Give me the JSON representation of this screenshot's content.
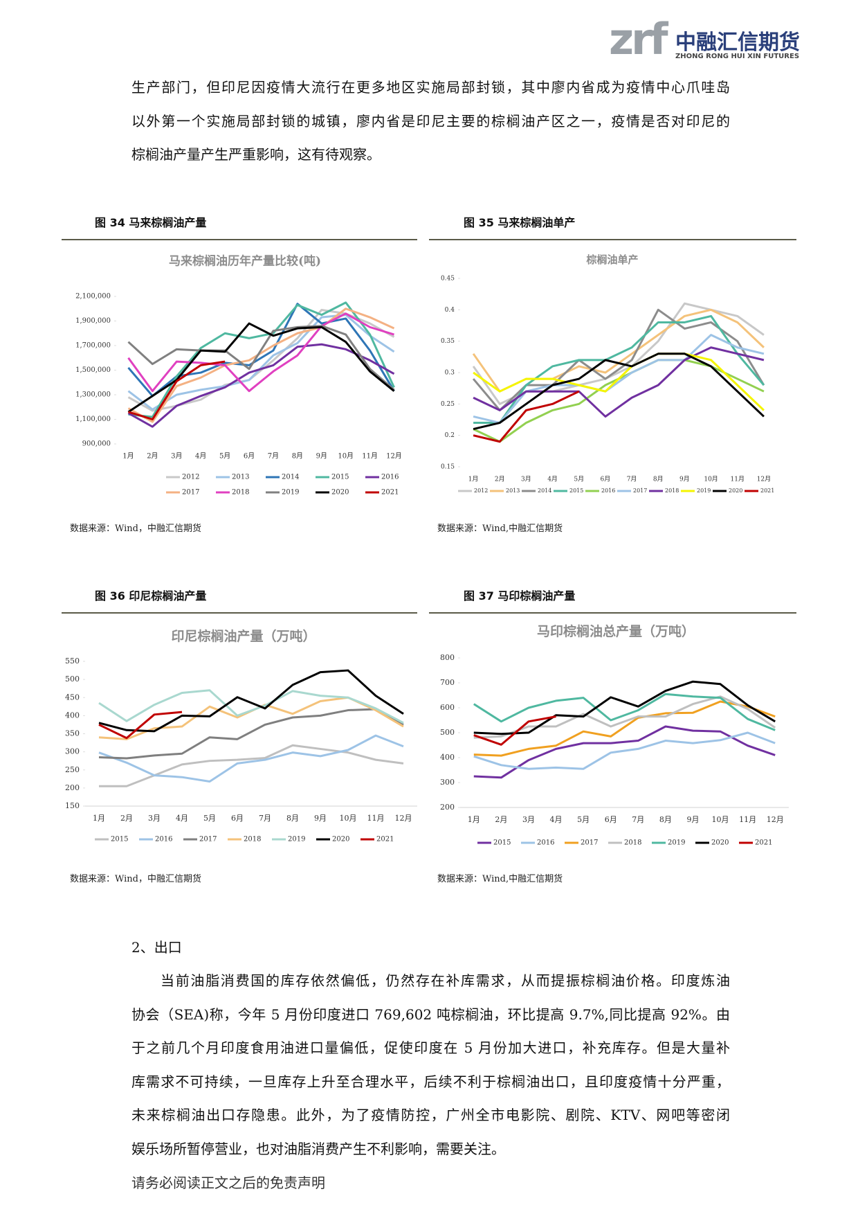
{
  "header": {
    "logo_mark": "zrf",
    "logo_cn": "中融汇信期货",
    "logo_en": "ZHONG RONG HUI XIN FUTURES"
  },
  "paragraph1": [
    "生产部门，但印尼因疫情大流行在更多地区实施局部封锁，其中廖内省成为疫情中心爪哇岛",
    "以外第一个实施局部封锁的城镇，廖内省是印尼主要的棕榈油产区之一，疫情是否对印尼的",
    "棕榈油产量产生严重影响，这有待观察。"
  ],
  "figures": [
    {
      "caption": "图 34  马来棕榈油产量",
      "source": "数据来源：Wind，中融汇信期货"
    },
    {
      "caption": "图 35  马来棕榈油单产",
      "source": "数据来源：Wind,中融汇信期货"
    },
    {
      "caption": "图 36  印尼棕榈油产量",
      "source": "数据来源：Wind，中融汇信期货"
    },
    {
      "caption": "图 37  马印棕榈油产量",
      "source": "数据来源：Wind,中融汇信期货"
    }
  ],
  "chart_data": [
    {
      "type": "line",
      "title": "马来棕榈油历年产量比较(吨)",
      "categories": [
        "1月",
        "2月",
        "3月",
        "4月",
        "5月",
        "6月",
        "7月",
        "8月",
        "9月",
        "10月",
        "11月",
        "12月"
      ],
      "ylim": [
        900000,
        2100000
      ],
      "yticks": [
        {
          "value": 900000,
          "label": "900,000"
        },
        {
          "value": 1100000,
          "label": "1,100,000"
        },
        {
          "value": 1300000,
          "label": "1,300,000"
        },
        {
          "value": 1500000,
          "label": "1,500,000"
        },
        {
          "value": 1700000,
          "label": "1,700,000"
        },
        {
          "value": 1900000,
          "label": "1,900,000"
        },
        {
          "value": 2100000,
          "label": "2,100,000"
        }
      ],
      "series": [
        {
          "name": "2012",
          "color": "#c8c8c8",
          "values": [
            1280000,
            1170000,
            1210000,
            1260000,
            1380000,
            1420000,
            1580000,
            1760000,
            1990000,
            1960000,
            1880000,
            1770000
          ]
        },
        {
          "name": "2013",
          "color": "#9dc3e6",
          "values": [
            1330000,
            1180000,
            1300000,
            1340000,
            1370000,
            1420000,
            1620000,
            1720000,
            1930000,
            1950000,
            1780000,
            1650000
          ]
        },
        {
          "name": "2014",
          "color": "#2e75b6",
          "values": [
            1520000,
            1290000,
            1450000,
            1480000,
            1560000,
            1540000,
            1660000,
            2040000,
            1880000,
            1920000,
            1660000,
            1330000
          ]
        },
        {
          "name": "2015",
          "color": "#4fb8a0",
          "values": [
            1140000,
            1120000,
            1450000,
            1680000,
            1800000,
            1760000,
            1800000,
            2030000,
            1950000,
            2050000,
            1790000,
            1360000
          ]
        },
        {
          "name": "2016",
          "color": "#7030a0",
          "values": [
            1150000,
            1040000,
            1210000,
            1290000,
            1360000,
            1480000,
            1540000,
            1690000,
            1710000,
            1670000,
            1580000,
            1470000
          ]
        },
        {
          "name": "2017",
          "color": "#f4b183",
          "values": [
            1190000,
            1080000,
            1370000,
            1440000,
            1540000,
            1580000,
            1700000,
            1800000,
            1850000,
            2000000,
            1930000,
            1840000
          ]
        },
        {
          "name": "2018",
          "color": "#e040c0",
          "values": [
            1600000,
            1330000,
            1570000,
            1560000,
            1540000,
            1330000,
            1490000,
            1620000,
            1860000,
            1960000,
            1850000,
            1790000
          ]
        },
        {
          "name": "2019",
          "color": "#808080",
          "values": [
            1730000,
            1550000,
            1670000,
            1660000,
            1660000,
            1510000,
            1820000,
            1850000,
            1860000,
            1790000,
            1510000,
            1340000
          ]
        },
        {
          "name": "2020",
          "color": "#000000",
          "values": [
            1160000,
            1290000,
            1420000,
            1660000,
            1650000,
            1880000,
            1780000,
            1840000,
            1850000,
            1730000,
            1490000,
            1330000
          ]
        },
        {
          "name": "2021",
          "color": "#c00000",
          "values": [
            1160000,
            1100000,
            1410000,
            1540000,
            1570000,
            null,
            null,
            null,
            null,
            null,
            null,
            null
          ]
        }
      ]
    },
    {
      "type": "line",
      "title": "棕榈油单产",
      "categories": [
        "1月",
        "2月",
        "3月",
        "4月",
        "5月",
        "6月",
        "7月",
        "8月",
        "9月",
        "10月",
        "11月",
        "12月"
      ],
      "ylim": [
        0.15,
        0.45
      ],
      "yticks": [
        0.15,
        0.2,
        0.25,
        0.3,
        0.35,
        0.4,
        0.45
      ],
      "series": [
        {
          "name": "2012",
          "color": "#c8c8c8",
          "values": [
            0.31,
            0.25,
            0.27,
            0.27,
            0.28,
            0.29,
            0.31,
            0.35,
            0.41,
            0.4,
            0.39,
            0.36
          ]
        },
        {
          "name": "2013",
          "color": "#f4c27a",
          "values": [
            0.33,
            0.27,
            0.29,
            0.29,
            0.31,
            0.3,
            0.33,
            0.36,
            0.39,
            0.4,
            0.38,
            0.34
          ]
        },
        {
          "name": "2014",
          "color": "#8c8c8c",
          "values": [
            0.29,
            0.24,
            0.28,
            0.28,
            0.32,
            0.29,
            0.32,
            0.4,
            0.37,
            0.38,
            0.35,
            0.28
          ]
        },
        {
          "name": "2015",
          "color": "#4fb8a0",
          "values": [
            0.22,
            0.22,
            0.28,
            0.31,
            0.32,
            0.32,
            0.34,
            0.38,
            0.38,
            0.39,
            0.33,
            0.28
          ]
        },
        {
          "name": "2016",
          "color": "#92d050",
          "values": [
            0.21,
            0.19,
            0.22,
            0.24,
            0.25,
            0.28,
            0.3,
            0.32,
            0.32,
            0.31,
            0.29,
            0.27
          ]
        },
        {
          "name": "2017",
          "color": "#9dc3e6",
          "values": [
            0.23,
            0.22,
            0.27,
            0.28,
            0.28,
            0.27,
            0.3,
            0.32,
            0.32,
            0.36,
            0.34,
            0.33
          ]
        },
        {
          "name": "2018",
          "color": "#7030a0",
          "values": [
            0.26,
            0.24,
            0.27,
            0.27,
            0.27,
            0.23,
            0.26,
            0.28,
            0.32,
            0.34,
            0.33,
            0.32
          ]
        },
        {
          "name": "2019",
          "color": "#f5f500",
          "values": [
            0.3,
            0.27,
            0.29,
            0.29,
            0.28,
            0.27,
            0.31,
            0.33,
            0.33,
            0.32,
            0.28,
            0.24
          ]
        },
        {
          "name": "2020",
          "color": "#000000",
          "values": [
            0.21,
            0.22,
            0.25,
            0.28,
            0.29,
            0.32,
            0.31,
            0.33,
            0.33,
            0.31,
            0.27,
            0.23
          ]
        },
        {
          "name": "2021",
          "color": "#c00000",
          "values": [
            0.2,
            0.19,
            0.24,
            0.25,
            0.27,
            null,
            null,
            null,
            null,
            null,
            null,
            null
          ]
        }
      ]
    },
    {
      "type": "line",
      "title": "印尼棕榈油产量（万吨）",
      "categories": [
        "1月",
        "2月",
        "3月",
        "4月",
        "5月",
        "6月",
        "7月",
        "8月",
        "9月",
        "10月",
        "11月",
        "12月"
      ],
      "ylim": [
        150,
        550
      ],
      "yticks": [
        150,
        200,
        250,
        300,
        350,
        400,
        450,
        500,
        550
      ],
      "series": [
        {
          "name": "2015",
          "color": "#bfbfbf",
          "values": [
            205,
            205,
            235,
            265,
            275,
            278,
            283,
            318,
            308,
            298,
            278,
            268
          ]
        },
        {
          "name": "2016",
          "color": "#9dc3e6",
          "values": [
            298,
            270,
            235,
            230,
            218,
            268,
            278,
            298,
            288,
            305,
            345,
            315
          ]
        },
        {
          "name": "2017",
          "color": "#7f7f7f",
          "values": [
            285,
            282,
            290,
            295,
            340,
            335,
            375,
            395,
            400,
            415,
            418,
            375
          ]
        },
        {
          "name": "2018",
          "color": "#f4c27a",
          "values": [
            340,
            335,
            365,
            370,
            425,
            395,
            430,
            405,
            440,
            450,
            415,
            370
          ]
        },
        {
          "name": "2019",
          "color": "#a9d8cf",
          "values": [
            435,
            385,
            430,
            463,
            470,
            400,
            428,
            468,
            455,
            450,
            420,
            380
          ]
        },
        {
          "name": "2020",
          "color": "#000000",
          "values": [
            380,
            360,
            357,
            400,
            398,
            451,
            420,
            485,
            520,
            525,
            455,
            405
          ]
        },
        {
          "name": "2021",
          "color": "#c00000",
          "values": [
            375,
            338,
            403,
            410,
            null,
            null,
            null,
            null,
            null,
            null,
            null,
            null
          ]
        }
      ]
    },
    {
      "type": "line",
      "title": "马印棕榈油总产量（万吨）",
      "categories": [
        "1月",
        "2月",
        "3月",
        "4月",
        "5月",
        "6月",
        "7月",
        "8月",
        "9月",
        "10月",
        "11月",
        "12月"
      ],
      "ylim": [
        200,
        800
      ],
      "yticks": [
        200,
        300,
        400,
        500,
        600,
        700,
        800
      ],
      "series": [
        {
          "name": "2015",
          "color": "#7030a0",
          "values": [
            325,
            320,
            390,
            435,
            458,
            458,
            468,
            525,
            508,
            505,
            448,
            410
          ]
        },
        {
          "name": "2016",
          "color": "#9dc3e6",
          "values": [
            405,
            370,
            355,
            360,
            355,
            420,
            435,
            468,
            458,
            470,
            500,
            458
          ]
        },
        {
          "name": "2017",
          "color": "#f0a020",
          "values": [
            412,
            408,
            435,
            448,
            505,
            485,
            560,
            578,
            580,
            625,
            605,
            565
          ]
        },
        {
          "name": "2018",
          "color": "#bfbfbf",
          "values": [
            480,
            485,
            525,
            525,
            575,
            525,
            565,
            565,
            615,
            645,
            595,
            520
          ]
        },
        {
          "name": "2019",
          "color": "#4fb8a0",
          "values": [
            615,
            545,
            600,
            628,
            640,
            550,
            590,
            655,
            645,
            640,
            555,
            510
          ]
        },
        {
          "name": "2020",
          "color": "#000000",
          "values": [
            500,
            495,
            500,
            570,
            565,
            642,
            605,
            668,
            705,
            695,
            610,
            545
          ]
        },
        {
          "name": "2021",
          "color": "#c00000",
          "values": [
            490,
            452,
            545,
            565,
            null,
            null,
            null,
            null,
            null,
            null,
            null,
            null
          ]
        }
      ]
    }
  ],
  "section_heading": "2、出口",
  "paragraph2": [
    "当前油脂消费国的库存依然偏低，仍然存在补库需求，从而提振棕榈油价格。印度炼油",
    "协会（SEA)称，今年 5 月份印度进口 769,602 吨棕榈油，环比提高 9.7%,同比提高 92%。由",
    "于之前几个月印度食用油进口量偏低，促使印度在 5 月份加大进口，补充库存。但是大量补",
    "库需求不可持续，一旦库存上升至合理水平，后续不利于棕榈油出口，且印度疫情十分严重，",
    "未来棕榈油出口存隐患。此外，为了疫情防控，广州全市电影院、剧院、KTV、网吧等密闭",
    "娱乐场所暂停营业，也对油脂消费产生不利影响，需要关注。"
  ],
  "footer": "请务必阅读正文之后的免责声明"
}
